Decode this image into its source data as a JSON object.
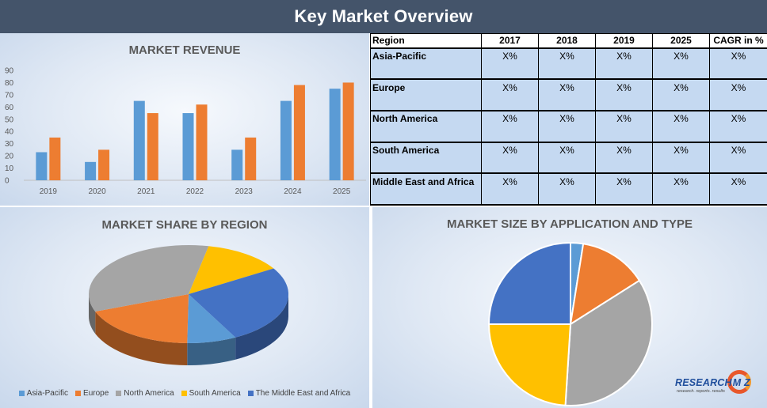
{
  "header": {
    "title": "Key Market Overview"
  },
  "revenue": {
    "title": "MARKET REVENUE"
  },
  "table": {
    "headers": [
      "Region",
      "2017",
      "2018",
      "2019",
      "2025",
      "CAGR in %"
    ],
    "rows": [
      {
        "region": "Asia-Pacific",
        "values": [
          "X%",
          "X%",
          "X%",
          "X%",
          "X%"
        ]
      },
      {
        "region": "Europe",
        "values": [
          "X%",
          "X%",
          "X%",
          "X%",
          "X%"
        ]
      },
      {
        "region": "North America",
        "values": [
          "X%",
          "X%",
          "X%",
          "X%",
          "X%"
        ]
      },
      {
        "region": "South America",
        "values": [
          "X%",
          "X%",
          "X%",
          "X%",
          "X%"
        ]
      },
      {
        "region": "Middle East and Africa",
        "values": [
          "X%",
          "X%",
          "X%",
          "X%",
          "X%"
        ]
      }
    ]
  },
  "share": {
    "title": "MARKET SHARE BY REGION"
  },
  "size": {
    "title": "MARKET SIZE BY APPLICATION AND TYPE"
  },
  "logo": {
    "word": "RESEARCH",
    "letters": "M  Z",
    "tagline": "research. reports. results"
  },
  "chart_data": [
    {
      "type": "bar",
      "title": "MARKET REVENUE",
      "categories": [
        "2019",
        "2020",
        "2021",
        "2022",
        "2023",
        "2024",
        "2025"
      ],
      "series": [
        {
          "color": "#5b9bd5",
          "values": [
            23,
            15,
            65,
            55,
            25,
            65,
            75
          ]
        },
        {
          "color": "#ed7d31",
          "values": [
            35,
            25,
            55,
            62,
            35,
            78,
            80
          ]
        }
      ],
      "ylim": [
        0,
        90
      ],
      "yticks": [
        0,
        10,
        20,
        30,
        40,
        50,
        60,
        70,
        80,
        90
      ],
      "grid": false
    },
    {
      "type": "pie",
      "title": "MARKET SHARE BY REGION",
      "style": "3d",
      "legend_position": "bottom",
      "slices": [
        {
          "name": "Asia-Pacific",
          "value": 8,
          "color": "#5b9bd5"
        },
        {
          "name": "Europe",
          "value": 19,
          "color": "#ed7d31"
        },
        {
          "name": "North America",
          "value": 34,
          "color": "#a5a5a5"
        },
        {
          "name": "South America",
          "value": 13,
          "color": "#ffc000"
        },
        {
          "name": "The Middle East and Africa",
          "value": 26,
          "color": "#4472c4"
        }
      ]
    },
    {
      "type": "pie",
      "title": "MARKET SIZE BY APPLICATION AND TYPE",
      "slices": [
        {
          "value": 2.5,
          "color": "#5b9bd5"
        },
        {
          "value": 13.5,
          "color": "#ed7d31"
        },
        {
          "value": 35,
          "color": "#a5a5a5"
        },
        {
          "value": 24,
          "color": "#ffc000"
        },
        {
          "value": 25,
          "color": "#4472c4"
        }
      ]
    }
  ]
}
